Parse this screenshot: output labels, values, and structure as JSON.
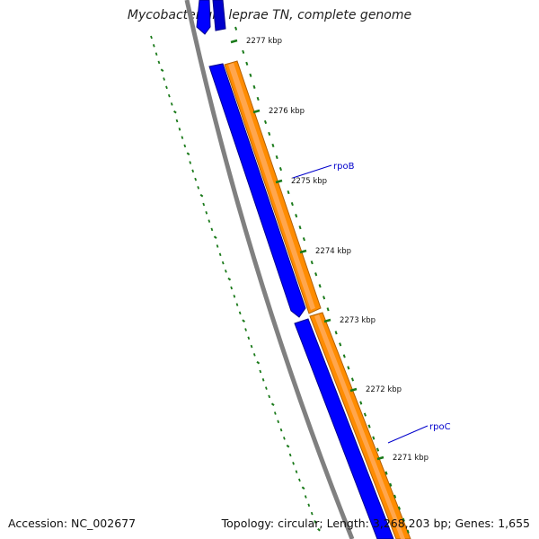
{
  "title": "Mycobacterium leprae TN, complete genome",
  "footer": {
    "accession": "Accession: NC_002677",
    "summary": "Topology: circular; Length: 3,268,203 bp; Genes: 1,655"
  },
  "ticks": [
    {
      "label": "2277 kbp"
    },
    {
      "label": "2276 kbp"
    },
    {
      "label": "2275 kbp"
    },
    {
      "label": "2274 kbp"
    },
    {
      "label": "2273 kbp"
    },
    {
      "label": "2272 kbp"
    },
    {
      "label": "2271 kbp"
    }
  ],
  "genes": [
    {
      "name": "rpoB"
    },
    {
      "name": "rpoC"
    }
  ],
  "colors": {
    "forward_gene": "#ff8c00",
    "reverse_gene": "#0000ff",
    "backbone": "#808080",
    "ticks": "#1a7a1a",
    "gene_label": "#0000cc"
  }
}
